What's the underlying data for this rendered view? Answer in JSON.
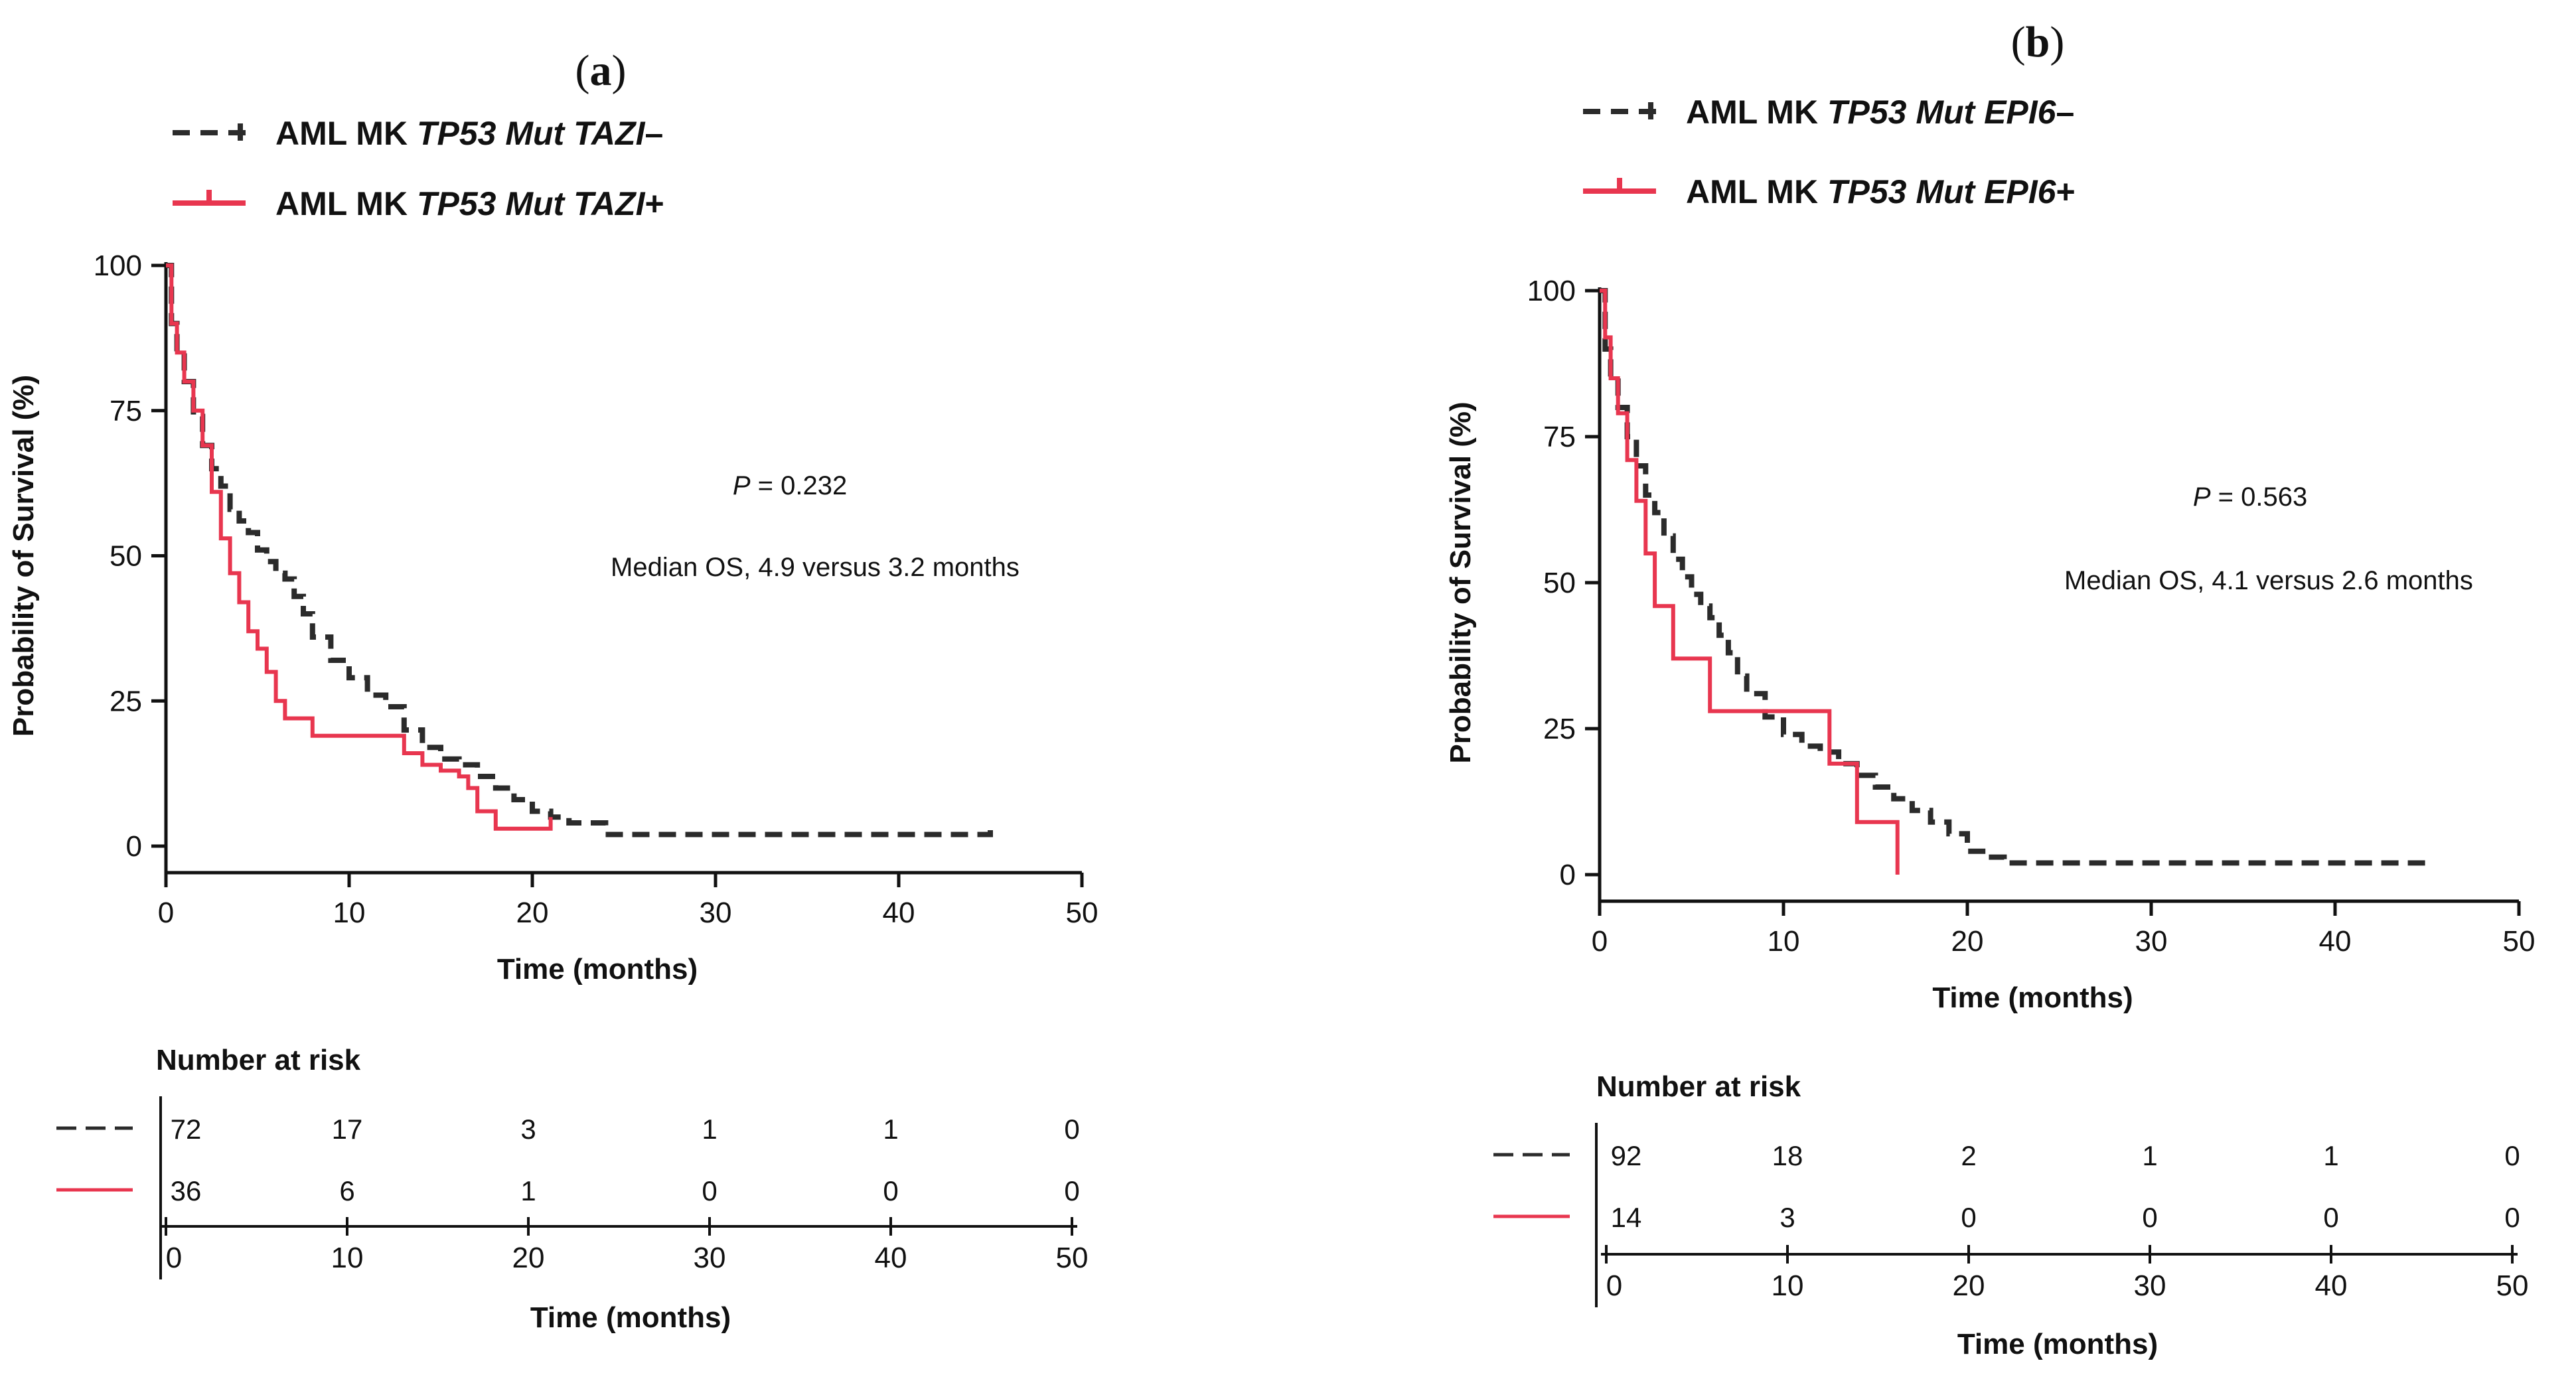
{
  "colors": {
    "group_neg": "#2b2b2b",
    "group_pos": "#e8364f",
    "axis": "#111111"
  },
  "chart_data": [
    {
      "type": "line",
      "chart_kind": "kaplan-meier",
      "panel_label": {
        "open": "(",
        "letter": "a",
        "close": ")"
      },
      "xlabel": "Time (months)",
      "ylabel": "Probability of Survival (%)",
      "xlim": [
        0,
        50
      ],
      "ylim": [
        0,
        100
      ],
      "xticks": [
        0,
        10,
        20,
        30,
        40,
        50
      ],
      "yticks": [
        0,
        25,
        50,
        75,
        100
      ],
      "annotations": {
        "p_prefix": "P",
        "p_value": " = 0.232",
        "median": "Median OS, 4.9 versus 3.2 months"
      },
      "series": [
        {
          "name": "AML MK TP53 Mut TAZI–",
          "legend": {
            "prefix": "AML MK ",
            "italic": "TP53 Mut TAZI",
            "suffix": "–"
          },
          "style": "dashed",
          "x": [
            0,
            0.3,
            0.6,
            1,
            1.5,
            2,
            2.5,
            3,
            3.5,
            4,
            4.5,
            5,
            5.5,
            6,
            6.5,
            7,
            7.5,
            8,
            9,
            10,
            11,
            12,
            13,
            14,
            15,
            16,
            17,
            18,
            19,
            20,
            21,
            22,
            24,
            30,
            40,
            44,
            45
          ],
          "y": [
            100,
            90,
            85,
            80,
            74,
            69,
            65,
            62,
            58,
            56,
            54,
            51,
            49,
            47,
            46,
            43,
            40,
            36,
            32,
            29,
            26,
            24,
            20,
            17,
            15,
            14,
            12,
            10,
            8,
            6,
            5,
            4,
            2,
            2,
            2,
            2,
            4
          ]
        },
        {
          "name": "AML MK TP53 Mut TAZI+",
          "legend": {
            "prefix": "AML MK ",
            "italic": "TP53 Mut TAZI",
            "suffix": "+"
          },
          "style": "solid",
          "x": [
            0,
            0.3,
            0.6,
            1,
            1.5,
            2,
            2.5,
            3,
            3.5,
            4,
            4.5,
            5,
            5.5,
            6,
            6.5,
            7,
            8,
            12,
            13,
            14,
            15,
            16,
            16.5,
            17,
            18,
            20,
            21
          ],
          "y": [
            100,
            90,
            85,
            80,
            75,
            69,
            61,
            53,
            47,
            42,
            37,
            34,
            30,
            25,
            22,
            22,
            19,
            19,
            16,
            14,
            13,
            12,
            10,
            6,
            3,
            3,
            5
          ]
        }
      ],
      "risk_table": {
        "title": "Number at risk",
        "xlabel": "Time (months)",
        "xticks": [
          0,
          10,
          20,
          30,
          40,
          50
        ],
        "rows": [
          {
            "values": [
              "72",
              "17",
              "3",
              "1",
              "1",
              "0"
            ]
          },
          {
            "values": [
              "36",
              "6",
              "1",
              "0",
              "0",
              "0"
            ]
          }
        ]
      }
    },
    {
      "type": "line",
      "chart_kind": "kaplan-meier",
      "panel_label": {
        "open": "(",
        "letter": "b",
        "close": ")"
      },
      "xlabel": "Time (months)",
      "ylabel": "Probability of Survival (%)",
      "xlim": [
        0,
        50
      ],
      "ylim": [
        0,
        100
      ],
      "xticks": [
        0,
        10,
        20,
        30,
        40,
        50
      ],
      "yticks": [
        0,
        25,
        50,
        75,
        100
      ],
      "annotations": {
        "p_prefix": "P",
        "p_value": " = 0.563",
        "median": "Median OS, 4.1 versus 2.6 months"
      },
      "series": [
        {
          "name": "AML MK TP53 Mut EPI6–",
          "legend": {
            "prefix": "AML MK ",
            "italic": "TP53 Mut EPI6",
            "suffix": "–"
          },
          "style": "dashed",
          "x": [
            0,
            0.3,
            0.6,
            1,
            1.5,
            2,
            2.5,
            3,
            3.5,
            4,
            4.5,
            5,
            5.5,
            6,
            6.5,
            7,
            7.5,
            8,
            9,
            10,
            11,
            12,
            13,
            14,
            15,
            16,
            17,
            18,
            19,
            20,
            21,
            22,
            30,
            40,
            44,
            45
          ],
          "y": [
            100,
            90,
            85,
            80,
            75,
            70,
            65,
            62,
            58,
            54,
            51,
            48,
            46,
            44,
            41,
            38,
            34,
            31,
            27,
            24,
            22,
            21,
            19,
            17,
            15,
            13,
            11,
            9,
            7,
            4,
            3,
            2,
            2,
            2,
            2,
            3
          ]
        },
        {
          "name": "AML MK TP53 Mut EPI6+",
          "legend": {
            "prefix": "AML MK ",
            "italic": "TP53 Mut EPI6",
            "suffix": "+"
          },
          "style": "solid",
          "x": [
            0,
            0.3,
            0.6,
            1,
            1.5,
            2,
            2.5,
            3,
            4,
            6,
            7,
            10,
            12.5,
            14,
            15,
            16.2
          ],
          "y": [
            100,
            92,
            85,
            79,
            71,
            64,
            55,
            46,
            37,
            28,
            28,
            28,
            19,
            9,
            9,
            0
          ]
        }
      ],
      "risk_table": {
        "title": "Number at risk",
        "xlabel": "Time (months)",
        "xticks": [
          0,
          10,
          20,
          30,
          40,
          50
        ],
        "rows": [
          {
            "values": [
              "92",
              "18",
              "2",
              "1",
              "1",
              "0"
            ]
          },
          {
            "values": [
              "14",
              "3",
              "0",
              "0",
              "0",
              "0"
            ]
          }
        ]
      }
    }
  ]
}
